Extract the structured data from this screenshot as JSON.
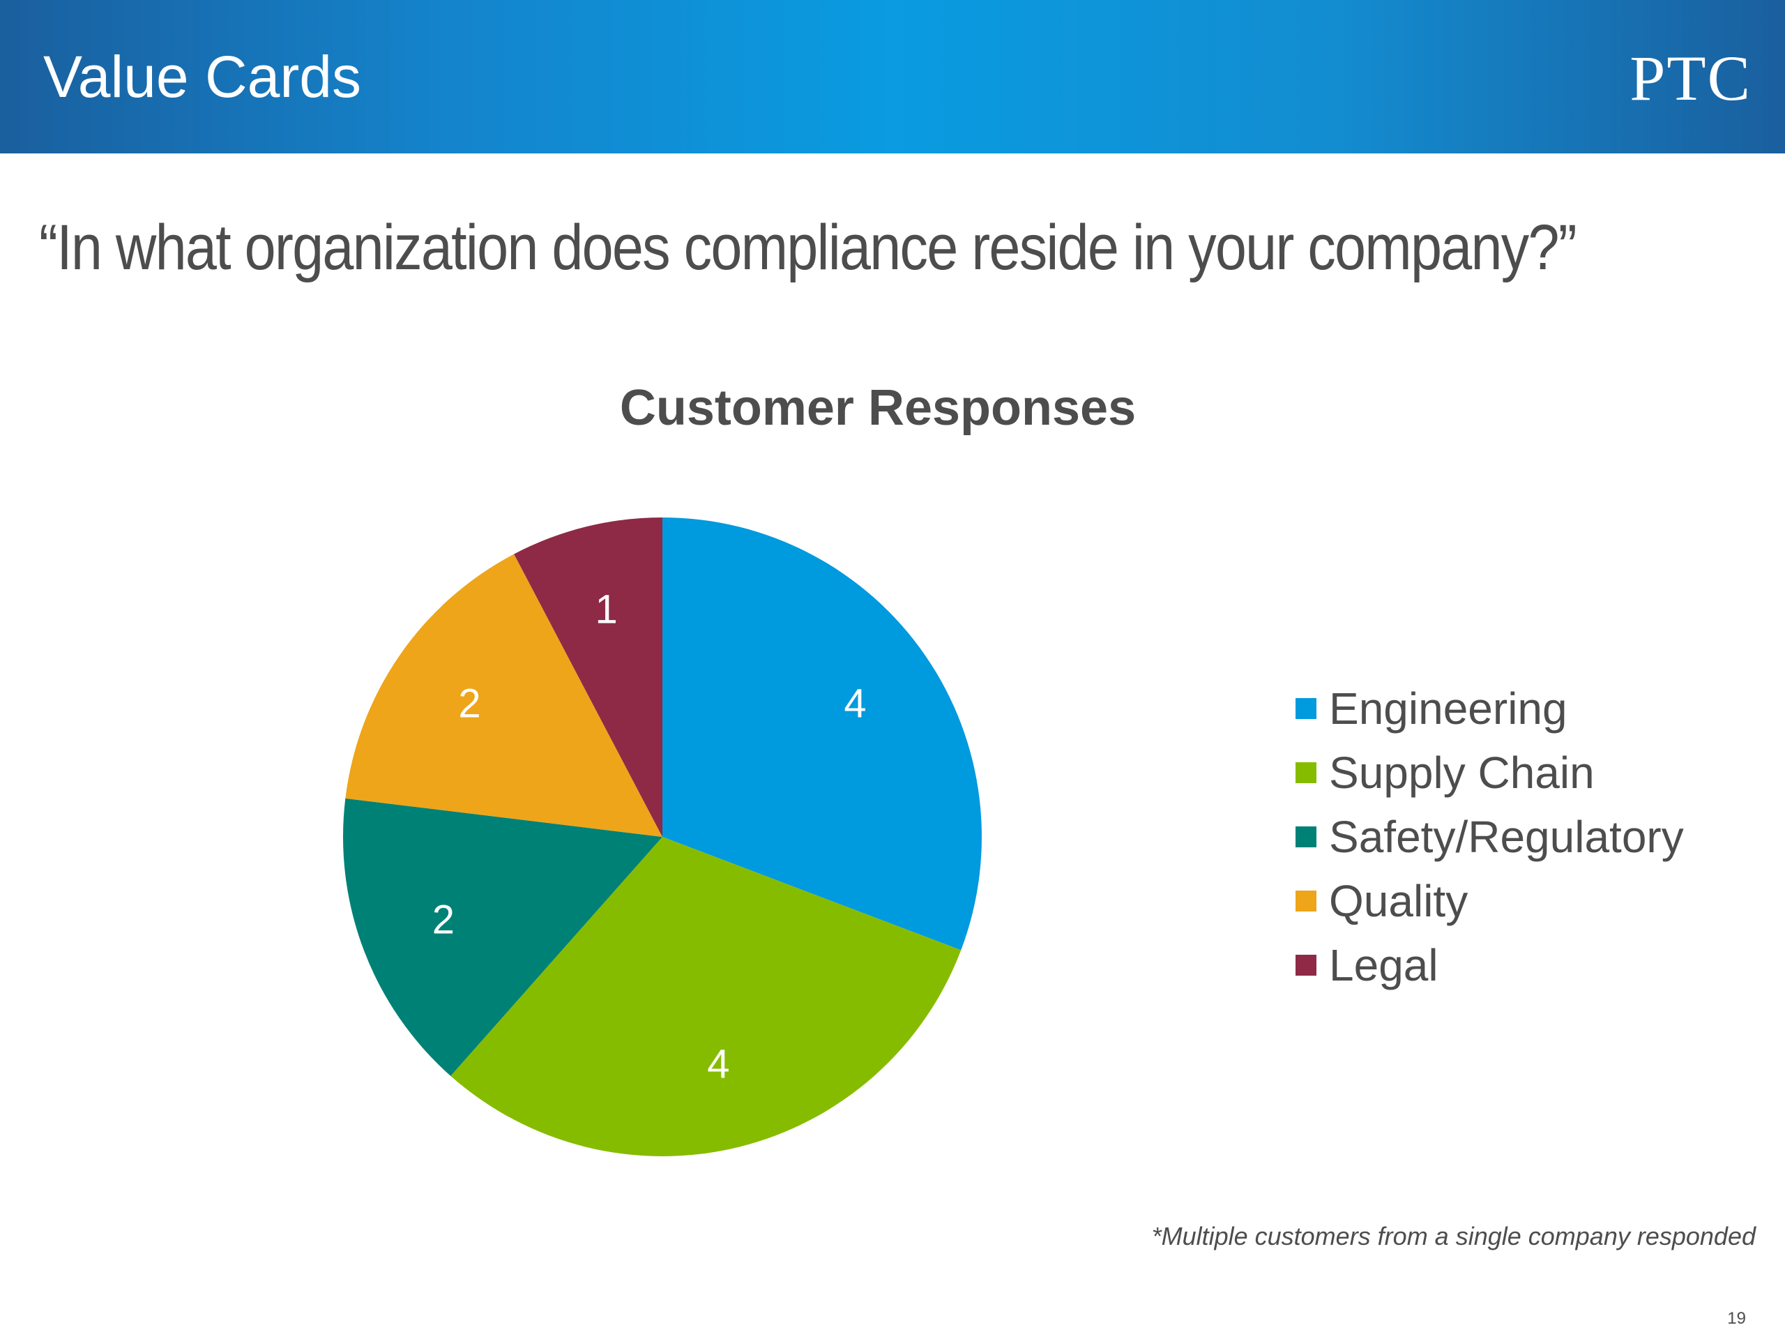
{
  "header": {
    "title": "Value Cards",
    "logo_text": "PTC",
    "colors": {
      "dark": "#1a5f9e",
      "light": "#0a9be0"
    }
  },
  "question": "“In what organization does compliance reside in your company?”",
  "footnote": "*Multiple customers from a single company responded",
  "page_number": "19",
  "chart_data": {
    "type": "pie",
    "title": "Customer Responses",
    "categories": [
      "Engineering",
      "Supply Chain",
      "Safety/Regulatory",
      "Quality",
      "Legal"
    ],
    "values": [
      4,
      4,
      2,
      2,
      1
    ],
    "data_labels": [
      "4",
      "4",
      "2",
      "2",
      "1"
    ],
    "colors": [
      "#009ade",
      "#86bc00",
      "#008176",
      "#eea519",
      "#8e2a46"
    ],
    "start_angle_deg": 0,
    "direction": "clockwise",
    "legend_position": "right"
  }
}
